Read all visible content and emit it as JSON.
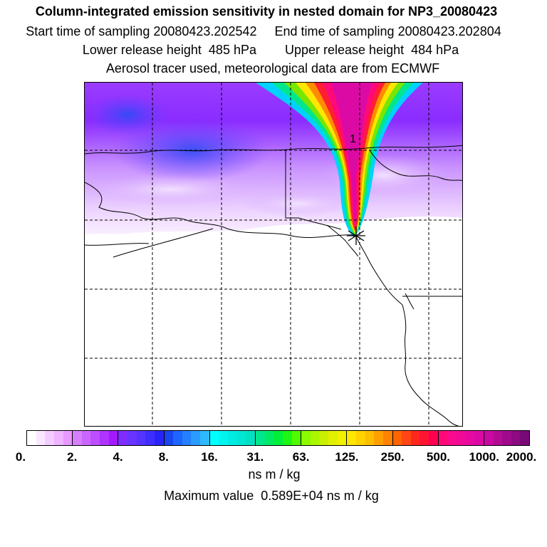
{
  "header": {
    "title": "Column-integrated emission sensitivity in nested domain for NP3_20080423",
    "sampling": "Start time of sampling 20080423.202542     End time of sampling 20080423.202804",
    "release": "Lower release height  485 hPa        Upper release height  484 hPa",
    "tracer": "Aerosol tracer used, meteorological data are from ECMWF"
  },
  "map": {
    "marker_label": "1",
    "plume_colors": [
      "#ff0a78",
      "#ff1e32",
      "#ff8c00",
      "#ffe600",
      "#78e600",
      "#00e68c",
      "#00d2ff"
    ],
    "background_colors": [
      "#8c28ff",
      "#a050ff",
      "#c88cff",
      "#e6c8ff",
      "#3c50f0"
    ]
  },
  "colorbar": {
    "tick_labels": [
      "0.",
      "2.",
      "4.",
      "8.",
      "16.",
      "31.",
      "63.",
      "125.",
      "250.",
      "500.",
      "1000.",
      "2000."
    ],
    "segments": [
      [
        "#ffffff",
        "#fbe6ff",
        "#f5ccff",
        "#efb3ff",
        "#e899ff"
      ],
      [
        "#d680ff",
        "#c966ff",
        "#bd4dff",
        "#b033ff",
        "#a31aff"
      ],
      [
        "#7d2eff",
        "#6a33ff",
        "#5533ff",
        "#3d2eff",
        "#2924f5"
      ],
      [
        "#1a46f0",
        "#1e64ff",
        "#2480ff",
        "#2a9cff",
        "#2eb8ff"
      ],
      [
        "#00ffff",
        "#00f5f0",
        "#00ebe1",
        "#00e6d2",
        "#00e1c3"
      ],
      [
        "#00e68c",
        "#00eb64",
        "#00f03c",
        "#1ef514",
        "#50fa00"
      ],
      [
        "#8cfa00",
        "#aaf500",
        "#c8f000",
        "#e1f000",
        "#f0f000"
      ],
      [
        "#ffe600",
        "#ffd200",
        "#ffbe00",
        "#ffa000",
        "#ff8200"
      ],
      [
        "#ff6400",
        "#ff4614",
        "#ff281e",
        "#ff1432",
        "#ff0050"
      ],
      [
        "#ff0a78",
        "#fa0a8c",
        "#f00a96",
        "#e60aa0",
        "#dc0aa5"
      ],
      [
        "#c80aa0",
        "#b40a96",
        "#a00a8c",
        "#8c0a82",
        "#780a78"
      ]
    ],
    "units": "ns m / kg"
  },
  "footer": {
    "max_value": "Maximum value  0.589E+04 ns m / kg"
  }
}
